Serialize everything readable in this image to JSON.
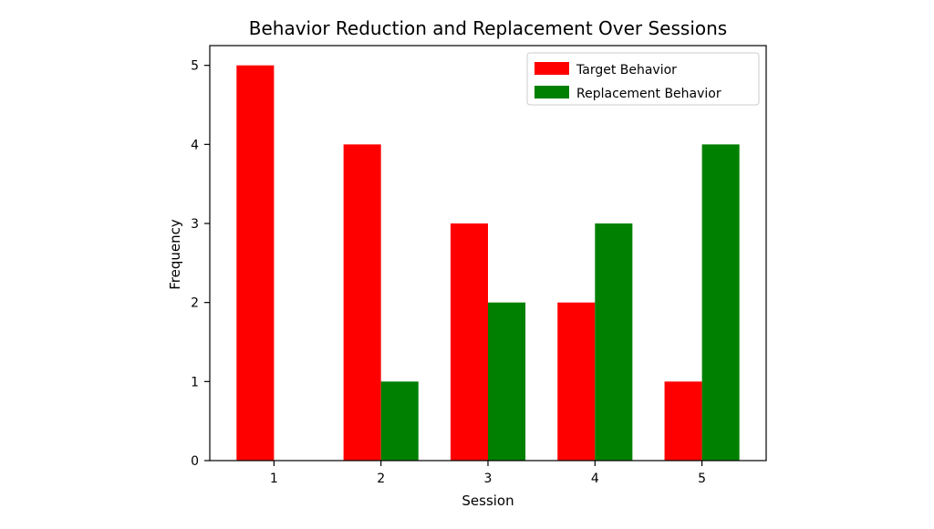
{
  "chart_data": {
    "type": "bar",
    "title": "Behavior Reduction and Replacement Over Sessions",
    "xlabel": "Session",
    "ylabel": "Frequency",
    "categories": [
      "1",
      "2",
      "3",
      "4",
      "5"
    ],
    "ylim": [
      0,
      5.25
    ],
    "yticks": [
      0,
      1,
      2,
      3,
      4,
      5
    ],
    "grid": false,
    "legend_position": "top-right",
    "series": [
      {
        "name": "Target Behavior",
        "values": [
          5,
          4,
          3,
          2,
          1
        ],
        "color": "#ff0000"
      },
      {
        "name": "Replacement Behavior",
        "values": [
          0,
          1,
          2,
          3,
          4
        ],
        "color": "#008000"
      }
    ]
  }
}
